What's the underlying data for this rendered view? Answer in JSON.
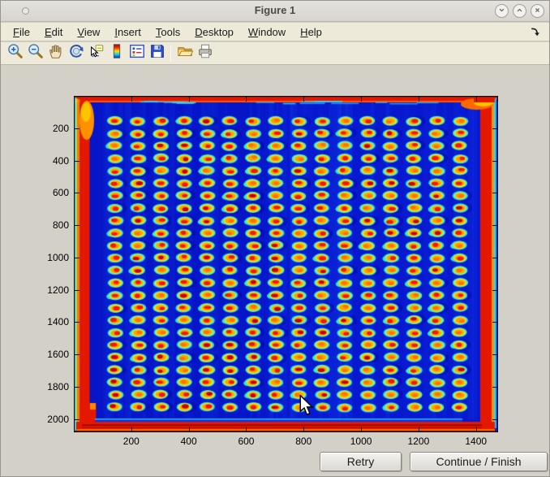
{
  "window": {
    "title": "Figure 1",
    "controls": [
      {
        "name": "minimize-button",
        "icon": "chevron-down"
      },
      {
        "name": "maximize-button",
        "icon": "chevron-up"
      },
      {
        "name": "close-button",
        "icon": "close"
      }
    ]
  },
  "menu": {
    "items": [
      "File",
      "Edit",
      "View",
      "Insert",
      "Tools",
      "Desktop",
      "Window",
      "Help"
    ],
    "dock_icon": "dock-arrow"
  },
  "toolbar": {
    "icons": [
      "zoom-in",
      "zoom-out",
      "pan",
      "rotate-3d",
      "data-cursor",
      "colorbar",
      "insert-legend",
      "save",
      "separator",
      "open-folder",
      "print"
    ]
  },
  "buttons": {
    "retry": "Retry",
    "continue_finish": "Continue / Finish"
  },
  "chart_data": {
    "type": "heatmap",
    "title": "",
    "xlabel": "",
    "ylabel": "",
    "xlim": [
      0,
      1477
    ],
    "ylim": [
      0,
      2082
    ],
    "y_direction": "down",
    "xticks": [
      200,
      400,
      600,
      800,
      1000,
      1200,
      1400
    ],
    "yticks": [
      200,
      400,
      600,
      800,
      1000,
      1200,
      1400,
      1600,
      1800,
      2000
    ],
    "colormap": "jet",
    "description": "False-color intensity image of a 384-well microplate scan: blue field, hot red edges, and a 16-column by 24-row grid of wells shown as cyan/green rings with yellow-orange rims and red cores",
    "grid": {
      "cols": 16,
      "rows": 24,
      "first_col_x": 144,
      "col_spacing_x": 80,
      "first_row_y": 156,
      "row_spacing_y": 77
    },
    "colors": {
      "field_blue": "#0818cf",
      "edge_red": "#e41800",
      "edge_orange": "#ff8a00",
      "edge_cyan": "#2adcff",
      "well_ring_cyan": "#27e0f2",
      "well_ring_green": "#43f0c8",
      "well_mid_yellow": "#ffe400",
      "well_rim_orange": "#ffa000",
      "well_core_red": "#f01800",
      "well_core_darkred": "#c80000"
    }
  }
}
